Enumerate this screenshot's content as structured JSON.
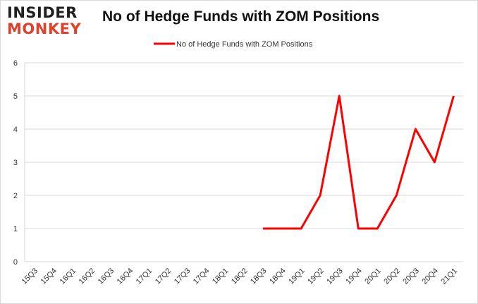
{
  "brand": {
    "line1": "INSIDER",
    "line2": "MONKEY",
    "colors": {
      "dark": "#1f1f1f",
      "accent": "#e0412b"
    }
  },
  "chart_data": {
    "type": "line",
    "title": "No of Hedge Funds with ZOM Positions",
    "xlabel": "",
    "ylabel": "",
    "categories": [
      "15Q3",
      "15Q4",
      "16Q1",
      "16Q2",
      "16Q3",
      "16Q4",
      "17Q1",
      "17Q2",
      "17Q3",
      "17Q4",
      "18Q1",
      "18Q2",
      "18Q3",
      "18Q4",
      "19Q1",
      "19Q2",
      "19Q3",
      "19Q4",
      "20Q1",
      "20Q2",
      "20Q3",
      "20Q4",
      "21Q1"
    ],
    "series": [
      {
        "name": "No of Hedge Funds with ZOM Positions",
        "color": "#ff0000",
        "values": [
          null,
          null,
          null,
          null,
          null,
          null,
          null,
          null,
          null,
          null,
          null,
          null,
          1,
          1,
          1,
          2,
          5,
          1,
          1,
          2,
          4,
          3,
          5
        ]
      }
    ],
    "ylim": [
      0,
      6
    ],
    "yticks": [
      0,
      1,
      2,
      3,
      4,
      5,
      6
    ],
    "grid": true,
    "legend_position": "top-center"
  }
}
